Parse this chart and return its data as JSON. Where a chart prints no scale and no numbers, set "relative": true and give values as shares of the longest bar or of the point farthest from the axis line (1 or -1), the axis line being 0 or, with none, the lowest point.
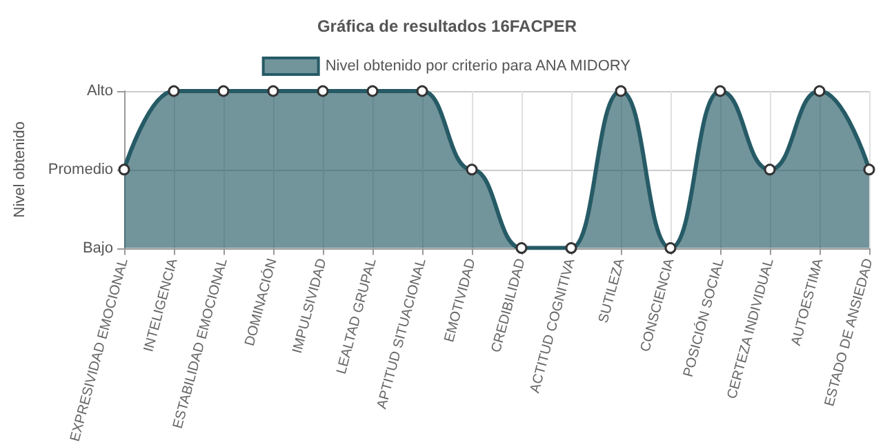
{
  "chart_data": {
    "type": "area",
    "title": "Gráfica de resultados 16FACPER",
    "ylabel": "Nivel obtenido",
    "categories": [
      "EXPRESIVIDAD EMOCIONAL",
      "INTELIGENCIA",
      "ESTABILIDAD EMOCIONAL",
      "DOMINACIÓN",
      "IMPULSIVIDAD",
      "LEALTAD GRUPAL",
      "APTITUD SITUACIONAL",
      "EMOTIVIDAD",
      "CREDIBILIDAD",
      "ACTITUD COGNITIVA",
      "SUTILEZA",
      "CONSCIENCIA",
      "POSICIÓN SOCIAL",
      "CERTEZA INDIVIDUAL",
      "AUTOESTIMA",
      "ESTADO DE ANSIEDAD"
    ],
    "y_categories": [
      "Alto",
      "Promedio",
      "Bajo"
    ],
    "relative": true,
    "series": [
      {
        "name": "Nivel obtenido por criterio para ANA MIDORY",
        "color": "#265b66",
        "values": [
          0.5,
          1,
          1,
          1,
          1,
          1,
          1,
          0.5,
          0,
          0,
          1,
          0,
          1,
          0.5,
          1,
          0.5
        ]
      }
    ],
    "grid": true,
    "legend": "top",
    "marker": "circle",
    "line_style": "solid"
  }
}
